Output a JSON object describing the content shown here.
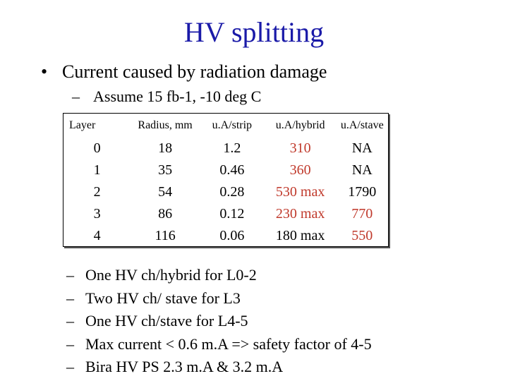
{
  "slide": {
    "title": "HV splitting",
    "bullet": {
      "marker": "•",
      "text": "Current caused by radiation damage"
    },
    "subbullet": {
      "marker": "–",
      "text": "Assume 15 fb-1, -10 deg C"
    }
  },
  "table": {
    "columns": [
      "Layer",
      "Radius, mm",
      "u.A/strip",
      "u.A/hybrid",
      "u.A/stave"
    ],
    "rows": [
      [
        {
          "text": "0",
          "color": "#000000"
        },
        {
          "text": "18",
          "color": "#000000"
        },
        {
          "text": "1.2",
          "color": "#000000"
        },
        {
          "text": "310",
          "color": "#c0392b"
        },
        {
          "text": "NA",
          "color": "#000000"
        }
      ],
      [
        {
          "text": "1",
          "color": "#000000"
        },
        {
          "text": "35",
          "color": "#000000"
        },
        {
          "text": "0.46",
          "color": "#000000"
        },
        {
          "text": "360",
          "color": "#c0392b"
        },
        {
          "text": "NA",
          "color": "#000000"
        }
      ],
      [
        {
          "text": "2",
          "color": "#000000"
        },
        {
          "text": "54",
          "color": "#000000"
        },
        {
          "text": "0.28",
          "color": "#000000"
        },
        {
          "text": "530 max",
          "color": "#c0392b"
        },
        {
          "text": "1790",
          "color": "#000000"
        }
      ],
      [
        {
          "text": "3",
          "color": "#000000"
        },
        {
          "text": "86",
          "color": "#000000"
        },
        {
          "text": "0.12",
          "color": "#000000"
        },
        {
          "text": "230 max",
          "color": "#c0392b"
        },
        {
          "text": "770",
          "color": "#c0392b"
        }
      ],
      [
        {
          "text": "4",
          "color": "#000000"
        },
        {
          "text": "116",
          "color": "#000000"
        },
        {
          "text": "0.06",
          "color": "#000000"
        },
        {
          "text": "180 max",
          "color": "#000000"
        },
        {
          "text": "550",
          "color": "#c0392b"
        }
      ]
    ]
  },
  "dash_items": {
    "marker": "–",
    "items": [
      "One HV ch/hybrid for L0-2",
      "Two HV ch/ stave  for L3",
      "One HV ch/stave for L4-5",
      "Max current < 0.6 m.A => safety factor of 4-5",
      "Bira HV PS 2.3 m.A & 3.2 m.A"
    ]
  },
  "colors": {
    "title": "#1a1aa8",
    "text": "#000000",
    "highlight": "#c0392b",
    "background": "#ffffff"
  }
}
